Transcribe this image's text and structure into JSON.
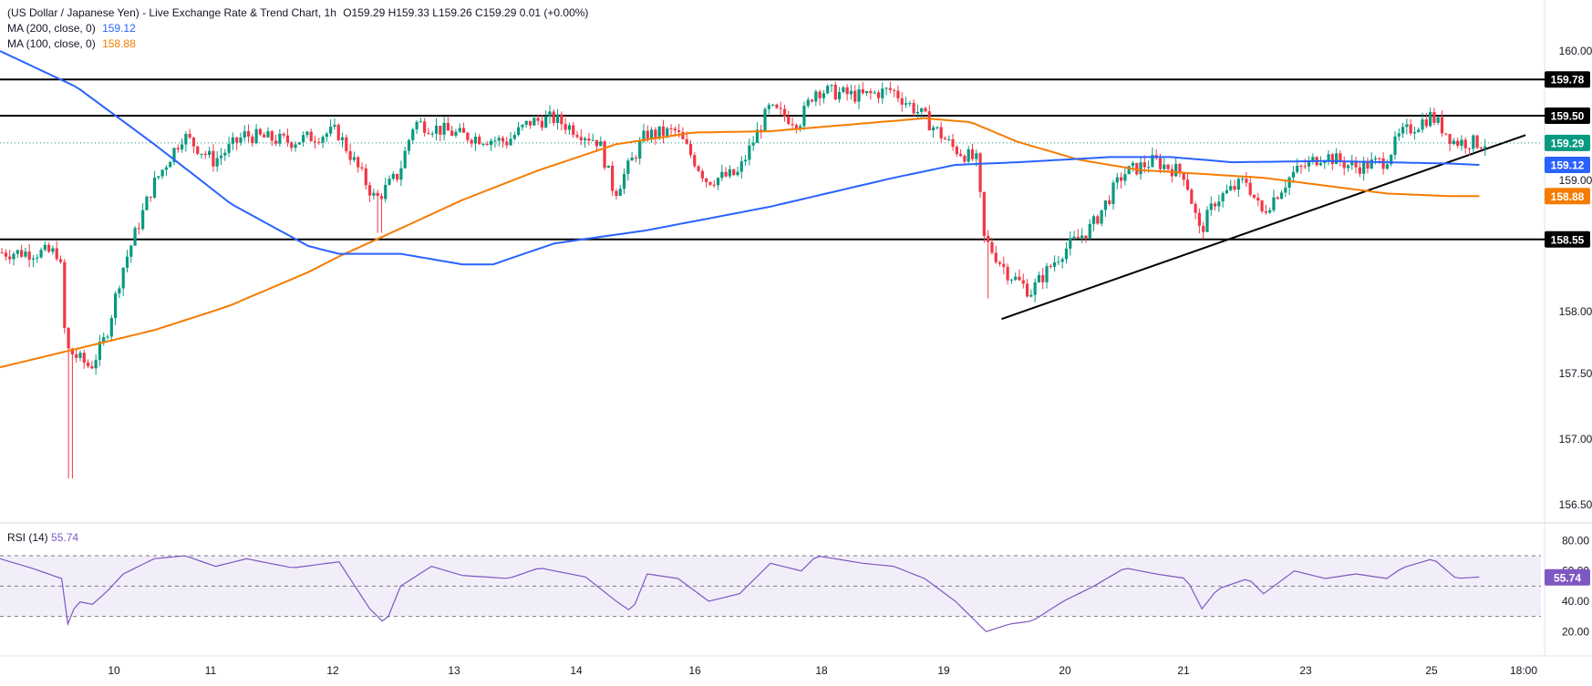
{
  "legend": {
    "title": "(US Dollar / Japanese Yen) - Live Exchange Rate & Trend Chart, 1h",
    "ohlc": "O159.29  H159.33  L159.26  C159.29  0.01 (+0.00%)",
    "ma200_label": "MA (200, close, 0)",
    "ma200_value": "159.12",
    "ma100_label": "MA (100, close, 0)",
    "ma100_value": "158.88"
  },
  "rsi_legend": {
    "label": "RSI (14)",
    "value": "55.74"
  },
  "colors": {
    "up": "#089981",
    "down": "#f23645",
    "ma200": "#2962ff",
    "ma100": "#f57c00",
    "rsi": "#7e57c2",
    "rsi_band": "#ede7f6",
    "hline": "#000000"
  },
  "chart_data": [
    {
      "type": "candlestick",
      "symbol": "USD/JPY",
      "timeframe": "1h",
      "ylim": [
        156.3,
        160.3
      ],
      "y_ticks": [
        "160.00",
        "159.00",
        "158.00",
        "157.50",
        "157.00",
        "156.50"
      ],
      "x_ticks": [
        "10",
        "11",
        "12",
        "13",
        "14",
        "16",
        "18",
        "19",
        "20",
        "21",
        "23",
        "25",
        "18:00"
      ],
      "horizontal_levels": [
        {
          "label": "159.78",
          "value": 159.78
        },
        {
          "label": "159.50",
          "value": 159.5
        },
        {
          "label": "158.55",
          "value": 158.55
        }
      ],
      "price_badges": [
        {
          "label": "159.29",
          "value": 159.29,
          "color": "#089981"
        },
        {
          "label": "159.12",
          "value": 159.12,
          "color": "#2962ff"
        },
        {
          "label": "158.88",
          "value": 158.88,
          "color": "#f57c00"
        }
      ],
      "trendline": {
        "from": [
          0.65,
          157.94
        ],
        "to": [
          0.99,
          159.35
        ]
      },
      "close_anchors": [
        [
          0.0,
          158.45
        ],
        [
          0.04,
          158.45
        ],
        [
          0.044,
          157.7
        ],
        [
          0.06,
          157.55
        ],
        [
          0.07,
          157.8
        ],
        [
          0.08,
          158.3
        ],
        [
          0.1,
          158.95
        ],
        [
          0.12,
          159.35
        ],
        [
          0.14,
          159.15
        ],
        [
          0.16,
          159.35
        ],
        [
          0.19,
          159.3
        ],
        [
          0.22,
          159.38
        ],
        [
          0.245,
          158.85
        ],
        [
          0.26,
          159.05
        ],
        [
          0.27,
          159.45
        ],
        [
          0.3,
          159.35
        ],
        [
          0.33,
          159.3
        ],
        [
          0.345,
          159.45
        ],
        [
          0.36,
          159.48
        ],
        [
          0.39,
          159.3
        ],
        [
          0.4,
          158.9
        ],
        [
          0.42,
          159.35
        ],
        [
          0.44,
          159.38
        ],
        [
          0.46,
          159.0
        ],
        [
          0.48,
          159.05
        ],
        [
          0.5,
          159.55
        ],
        [
          0.52,
          159.45
        ],
        [
          0.53,
          159.7
        ],
        [
          0.56,
          159.65
        ],
        [
          0.58,
          159.7
        ],
        [
          0.6,
          159.5
        ],
        [
          0.62,
          159.25
        ],
        [
          0.635,
          159.15
        ],
        [
          0.64,
          158.55
        ],
        [
          0.655,
          158.3
        ],
        [
          0.67,
          158.15
        ],
        [
          0.69,
          158.45
        ],
        [
          0.71,
          158.65
        ],
        [
          0.73,
          159.05
        ],
        [
          0.75,
          159.15
        ],
        [
          0.77,
          159.05
        ],
        [
          0.78,
          158.6
        ],
        [
          0.79,
          158.85
        ],
        [
          0.81,
          159.0
        ],
        [
          0.82,
          158.75
        ],
        [
          0.84,
          159.05
        ],
        [
          0.86,
          159.2
        ],
        [
          0.88,
          159.1
        ],
        [
          0.9,
          159.15
        ],
        [
          0.91,
          159.35
        ],
        [
          0.93,
          159.5
        ],
        [
          0.945,
          159.3
        ],
        [
          0.96,
          159.29
        ]
      ],
      "ma200_anchors": [
        [
          0.0,
          160.0
        ],
        [
          0.05,
          159.72
        ],
        [
          0.1,
          159.28
        ],
        [
          0.15,
          158.82
        ],
        [
          0.2,
          158.5
        ],
        [
          0.22,
          158.44
        ],
        [
          0.26,
          158.44
        ],
        [
          0.3,
          158.36
        ],
        [
          0.32,
          158.36
        ],
        [
          0.36,
          158.52
        ],
        [
          0.42,
          158.62
        ],
        [
          0.5,
          158.8
        ],
        [
          0.58,
          159.02
        ],
        [
          0.62,
          159.12
        ],
        [
          0.66,
          159.14
        ],
        [
          0.72,
          159.18
        ],
        [
          0.76,
          159.18
        ],
        [
          0.8,
          159.14
        ],
        [
          0.86,
          159.15
        ],
        [
          0.94,
          159.13
        ],
        [
          0.96,
          159.12
        ]
      ],
      "ma100_anchors": [
        [
          0.0,
          157.55
        ],
        [
          0.05,
          157.7
        ],
        [
          0.1,
          157.85
        ],
        [
          0.15,
          158.05
        ],
        [
          0.2,
          158.3
        ],
        [
          0.22,
          158.42
        ],
        [
          0.25,
          158.58
        ],
        [
          0.3,
          158.85
        ],
        [
          0.35,
          159.08
        ],
        [
          0.4,
          159.28
        ],
        [
          0.45,
          159.37
        ],
        [
          0.5,
          159.38
        ],
        [
          0.55,
          159.43
        ],
        [
          0.6,
          159.48
        ],
        [
          0.63,
          159.45
        ],
        [
          0.66,
          159.3
        ],
        [
          0.7,
          159.16
        ],
        [
          0.74,
          159.08
        ],
        [
          0.78,
          159.05
        ],
        [
          0.82,
          159.02
        ],
        [
          0.86,
          158.96
        ],
        [
          0.9,
          158.9
        ],
        [
          0.94,
          158.88
        ],
        [
          0.96,
          158.88
        ]
      ]
    },
    {
      "type": "line",
      "name": "RSI (14)",
      "ylim": [
        10,
        85
      ],
      "y_ticks": [
        "80.00",
        "60.00",
        "40.00",
        "20.00"
      ],
      "bands": [
        70,
        50,
        30
      ],
      "current": "55.74",
      "anchors": [
        [
          0.0,
          68
        ],
        [
          0.02,
          62
        ],
        [
          0.04,
          55
        ],
        [
          0.044,
          25
        ],
        [
          0.05,
          40
        ],
        [
          0.06,
          38
        ],
        [
          0.07,
          47
        ],
        [
          0.08,
          58
        ],
        [
          0.1,
          68
        ],
        [
          0.12,
          70
        ],
        [
          0.14,
          63
        ],
        [
          0.16,
          68
        ],
        [
          0.19,
          62
        ],
        [
          0.22,
          66
        ],
        [
          0.24,
          35
        ],
        [
          0.25,
          25
        ],
        [
          0.26,
          50
        ],
        [
          0.28,
          63
        ],
        [
          0.3,
          57
        ],
        [
          0.33,
          55
        ],
        [
          0.35,
          62
        ],
        [
          0.38,
          56
        ],
        [
          0.4,
          40
        ],
        [
          0.41,
          33
        ],
        [
          0.42,
          58
        ],
        [
          0.44,
          55
        ],
        [
          0.46,
          40
        ],
        [
          0.48,
          45
        ],
        [
          0.5,
          65
        ],
        [
          0.52,
          60
        ],
        [
          0.53,
          70
        ],
        [
          0.56,
          65
        ],
        [
          0.58,
          63
        ],
        [
          0.6,
          55
        ],
        [
          0.62,
          40
        ],
        [
          0.64,
          20
        ],
        [
          0.655,
          25
        ],
        [
          0.67,
          27
        ],
        [
          0.69,
          40
        ],
        [
          0.71,
          50
        ],
        [
          0.73,
          62
        ],
        [
          0.75,
          58
        ],
        [
          0.77,
          55
        ],
        [
          0.78,
          35
        ],
        [
          0.79,
          48
        ],
        [
          0.81,
          55
        ],
        [
          0.82,
          45
        ],
        [
          0.84,
          60
        ],
        [
          0.86,
          55
        ],
        [
          0.88,
          58
        ],
        [
          0.9,
          55
        ],
        [
          0.91,
          62
        ],
        [
          0.93,
          68
        ],
        [
          0.945,
          55
        ],
        [
          0.96,
          56
        ]
      ]
    }
  ]
}
